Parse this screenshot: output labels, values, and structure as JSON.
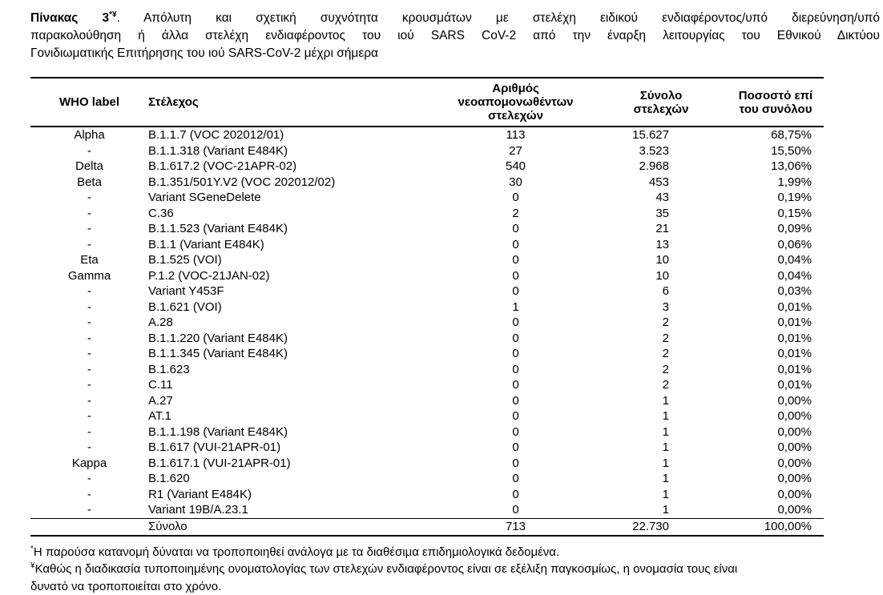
{
  "colors": {
    "text": "#000000",
    "background": "#ffffff",
    "rule": "#000000"
  },
  "title": {
    "label_bold": "Πίνακας 3",
    "label_sup": "*¥",
    "line1_rest": ". Απόλυτη και σχετική συχνότητα κρουσμάτων με στελέχη ειδικού ενδιαφέροντος/υπό διερεύνηση/υπό",
    "line2": "παρακολούθηση ή άλλα στελέχη ενδιαφέροντος του ιού SARS CoV-2 από την έναρξη λειτουργίας του Εθνικού Δικτύου",
    "line3": "Γονιδιωματικής Επιτήρησης του ιού SARS-CoV-2 μέχρι σήμερα"
  },
  "table": {
    "headers": {
      "who": "WHO label",
      "strain": "Στέλεχος",
      "new_line1": "Αριθμός νεοαπομονωθέντων",
      "new_line2": "στελεχών",
      "total_line1": "Σύνολο",
      "total_line2": "στελεχών",
      "pct_line1": "Ποσοστό επί",
      "pct_line2": "του συνόλου"
    },
    "rows": [
      {
        "who": "Alpha",
        "strain": "B.1.1.7 (VOC 202012/01)",
        "new": "113",
        "total": "15.627",
        "pct": "68,75%"
      },
      {
        "who": "-",
        "strain": "B.1.1.318 (Variant E484K)",
        "new": "27",
        "total": "3.523",
        "pct": "15,50%"
      },
      {
        "who": "Delta",
        "strain": "B.1.617.2 (VOC-21APR-02)",
        "new": "540",
        "total": "2.968",
        "pct": "13,06%"
      },
      {
        "who": "Beta",
        "strain": "B.1.351/501Y.V2 (VOC 202012/02)",
        "new": "30",
        "total": "453",
        "pct": "1,99%"
      },
      {
        "who": "-",
        "strain": "Variant SGeneDelete",
        "new": "0",
        "total": "43",
        "pct": "0,19%"
      },
      {
        "who": "-",
        "strain": "C.36",
        "new": "2",
        "total": "35",
        "pct": "0,15%"
      },
      {
        "who": "-",
        "strain": "B.1.1.523 (Variant E484K)",
        "new": "0",
        "total": "21",
        "pct": "0,09%"
      },
      {
        "who": "-",
        "strain": "B.1.1 (Variant E484K)",
        "new": "0",
        "total": "13",
        "pct": "0,06%"
      },
      {
        "who": "Eta",
        "strain": "B.1.525 (VOI)",
        "new": "0",
        "total": "10",
        "pct": "0,04%"
      },
      {
        "who": "Gamma",
        "strain": "P.1.2 (VOC-21JAN-02)",
        "new": "0",
        "total": "10",
        "pct": "0,04%"
      },
      {
        "who": "-",
        "strain": "Variant Y453F",
        "new": "0",
        "total": "6",
        "pct": "0,03%"
      },
      {
        "who": "-",
        "strain": "B.1.621 (VOI)",
        "new": "1",
        "total": "3",
        "pct": "0,01%"
      },
      {
        "who": "-",
        "strain": "A.28",
        "new": "0",
        "total": "2",
        "pct": "0,01%"
      },
      {
        "who": "-",
        "strain": "B.1.1.220 (Variant E484K)",
        "new": "0",
        "total": "2",
        "pct": "0,01%"
      },
      {
        "who": "-",
        "strain": "B.1.1.345 (Variant E484K)",
        "new": "0",
        "total": "2",
        "pct": "0,01%"
      },
      {
        "who": "-",
        "strain": "B.1.623",
        "new": "0",
        "total": "2",
        "pct": "0,01%"
      },
      {
        "who": "-",
        "strain": "C.11",
        "new": "0",
        "total": "2",
        "pct": "0,01%"
      },
      {
        "who": "-",
        "strain": "A.27",
        "new": "0",
        "total": "1",
        "pct": "0,00%"
      },
      {
        "who": "-",
        "strain": "AT.1",
        "new": "0",
        "total": "1",
        "pct": "0,00%"
      },
      {
        "who": "-",
        "strain": "B.1.1.198 (Variant E484K)",
        "new": "0",
        "total": "1",
        "pct": "0,00%"
      },
      {
        "who": "-",
        "strain": "B.1.617 (VUI-21APR-01)",
        "new": "0",
        "total": "1",
        "pct": "0,00%"
      },
      {
        "who": "Kappa",
        "strain": "B.1.617.1 (VUI-21APR-01)",
        "new": "0",
        "total": "1",
        "pct": "0,00%"
      },
      {
        "who": "-",
        "strain": "B.1.620",
        "new": "0",
        "total": "1",
        "pct": "0,00%"
      },
      {
        "who": "-",
        "strain": "R1 (Variant E484K)",
        "new": "0",
        "total": "1",
        "pct": "0,00%"
      },
      {
        "who": "-",
        "strain": "Variant 19B/A.23.1",
        "new": "0",
        "total": "1",
        "pct": "0,00%"
      }
    ],
    "total_row": {
      "who": "",
      "strain": "Σύνολο",
      "new": "713",
      "total": "22.730",
      "pct": "100,00%"
    }
  },
  "footnotes": {
    "fn1_sup": "*",
    "fn1_text": "Η παρούσα κατανομή δύναται να τροποποιηθεί ανάλογα με τα διαθέσιμα επιδημιολογικά δεδομένα.",
    "fn2_sup": "¥",
    "fn2_line1": "Καθώς η διαδικασία τυποποιημένης ονοματολογίας των στελεχών ενδιαφέροντος είναι σε εξέλιξη παγκοσμίως, η ονομασία τους είναι",
    "fn2_line2": "δυνατό να τροποποιείται στο χρόνο."
  }
}
